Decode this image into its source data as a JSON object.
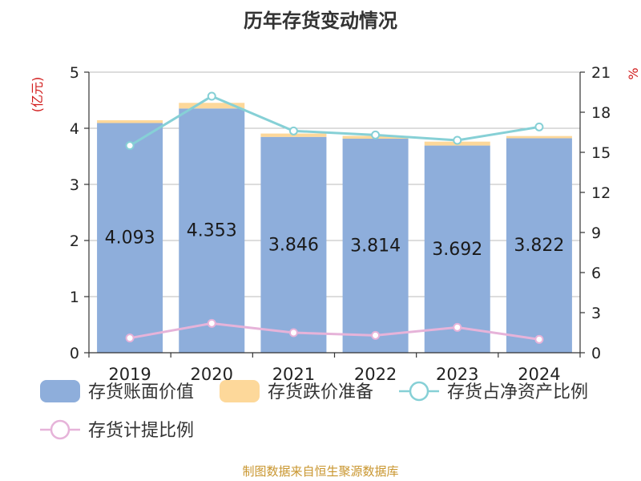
{
  "title": "历年存货变动情况",
  "source": "制图数据来自恒生聚源数据库",
  "chart_data": {
    "type": "bar",
    "stacked": true,
    "categories": [
      "2019",
      "2020",
      "2021",
      "2022",
      "2023",
      "2024"
    ],
    "left_axis": {
      "unit_label": "(亿元)",
      "ylim": [
        0,
        5
      ],
      "ticks": [
        0,
        1,
        2,
        3,
        4,
        5
      ]
    },
    "right_axis": {
      "unit_label": "%",
      "ylim": [
        0,
        21
      ],
      "ticks": [
        0,
        3,
        6,
        9,
        12,
        15,
        18,
        21
      ]
    },
    "series": [
      {
        "name": "存货账面价值",
        "kind": "bar",
        "axis": "left",
        "color": "#8eaedb",
        "values": [
          4.093,
          4.353,
          3.846,
          3.814,
          3.692,
          3.822
        ],
        "labels": [
          "4.093",
          "4.353",
          "3.846",
          "3.814",
          "3.692",
          "3.822"
        ]
      },
      {
        "name": "存货跌价准备",
        "kind": "bar",
        "axis": "left",
        "color": "#fdd89a",
        "values": [
          0.05,
          0.1,
          0.06,
          0.05,
          0.07,
          0.04
        ]
      },
      {
        "name": "存货占净资产比例",
        "kind": "line",
        "axis": "right",
        "color": "#86d0d6",
        "values": [
          15.5,
          19.2,
          16.6,
          16.3,
          15.9,
          16.9
        ]
      },
      {
        "name": "存货计提比例",
        "kind": "line",
        "axis": "right",
        "color": "#e6b3d9",
        "values": [
          1.1,
          2.2,
          1.5,
          1.3,
          1.9,
          1.0
        ]
      }
    ],
    "grid": true,
    "legend_position": "bottom"
  }
}
